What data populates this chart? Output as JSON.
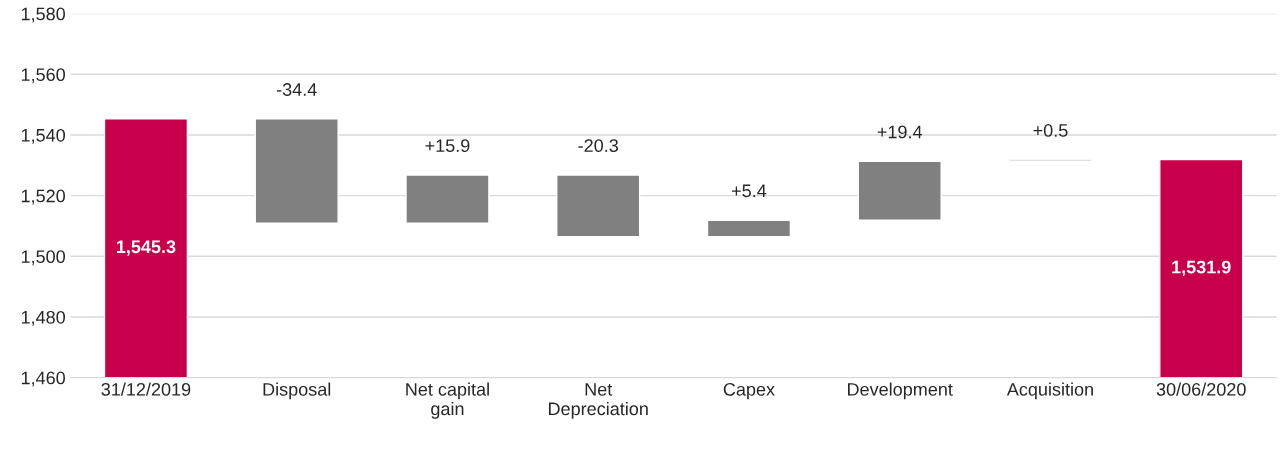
{
  "chart_data": {
    "type": "bar",
    "categories": [
      "31/12/2019",
      "Disposal",
      "Net capital\ngain",
      "Net\nDepreciation",
      "Capex",
      "Development",
      "Acquisition",
      "30/06/2020"
    ],
    "values": [
      1545.3,
      -34.4,
      15.9,
      -20.3,
      5.4,
      19.4,
      0.5,
      1531.9
    ],
    "base": [
      null,
      1545.3,
      1510.9,
      1526.8,
      1506.5,
      1511.9,
      1531.3,
      null
    ],
    "colors": [
      "#c8004b",
      "#808080",
      "#808080",
      "#808080",
      "#808080",
      "#808080",
      "#808080",
      "#c8004b"
    ],
    "value_labels": [
      "1,545.3",
      "-34.4",
      "+15.9",
      "-20.3",
      "+5.4",
      "+19.4",
      "+0.5",
      "1,531.9"
    ],
    "ylim": [
      1460,
      1580
    ],
    "yticks": [
      {
        "value": 1460,
        "label": "1,460"
      },
      {
        "value": 1480,
        "label": "1,480"
      },
      {
        "value": 1500,
        "label": "1,500"
      },
      {
        "value": 1520,
        "label": "1,520"
      },
      {
        "value": 1540,
        "label": "1,540"
      },
      {
        "value": 1560,
        "label": "1,560"
      },
      {
        "value": 1580,
        "label": "1,580"
      }
    ],
    "grid": "y",
    "legend": false
  }
}
